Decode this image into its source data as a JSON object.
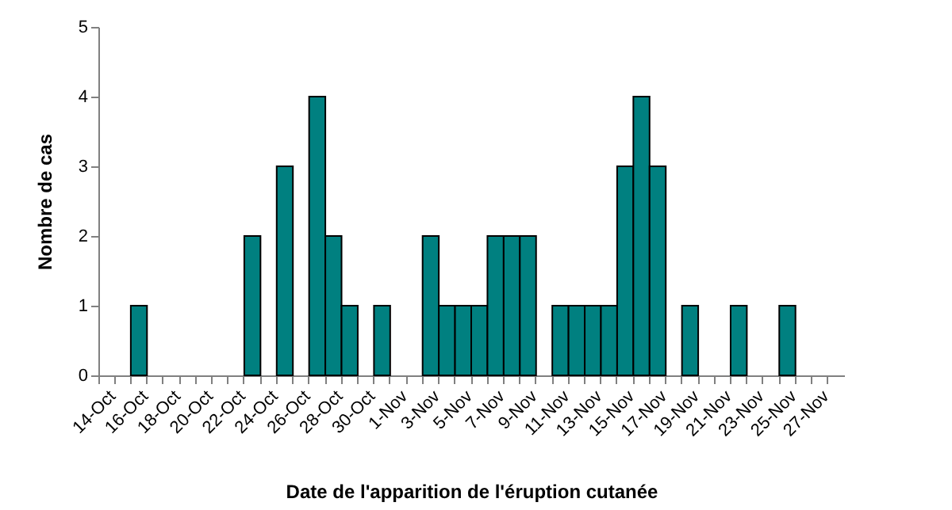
{
  "chart_data": {
    "type": "bar",
    "xlabel": "Date de l'apparition de l'éruption cutanée",
    "ylabel": "Nombre de cas",
    "categories": [
      "14-Oct",
      null,
      "16-Oct",
      null,
      "18-Oct",
      null,
      "20-Oct",
      null,
      "22-Oct",
      null,
      "24-Oct",
      null,
      "26-Oct",
      null,
      "28-Oct",
      null,
      "30-Oct",
      null,
      "1-Nov",
      null,
      "3-Nov",
      null,
      "5-Nov",
      null,
      "7-Nov",
      null,
      "9-Nov",
      null,
      "11-Nov",
      null,
      "13-Nov",
      null,
      "15-Nov",
      null,
      "17-Nov",
      null,
      "19-Nov",
      null,
      "21-Nov",
      null,
      "23-Nov",
      null,
      "25-Nov",
      null,
      "27-Nov",
      null
    ],
    "values": [
      0,
      0,
      1,
      0,
      0,
      0,
      0,
      0,
      0,
      2,
      0,
      3,
      0,
      4,
      2,
      1,
      0,
      1,
      0,
      0,
      2,
      1,
      1,
      1,
      2,
      2,
      2,
      0,
      1,
      1,
      1,
      1,
      3,
      4,
      3,
      0,
      1,
      0,
      0,
      1,
      0,
      0,
      1,
      0,
      0,
      0
    ],
    "color": "#008080",
    "ylim": [
      0,
      5
    ],
    "yticks": [
      0,
      1,
      2,
      3,
      4,
      5
    ],
    "grid": false
  }
}
